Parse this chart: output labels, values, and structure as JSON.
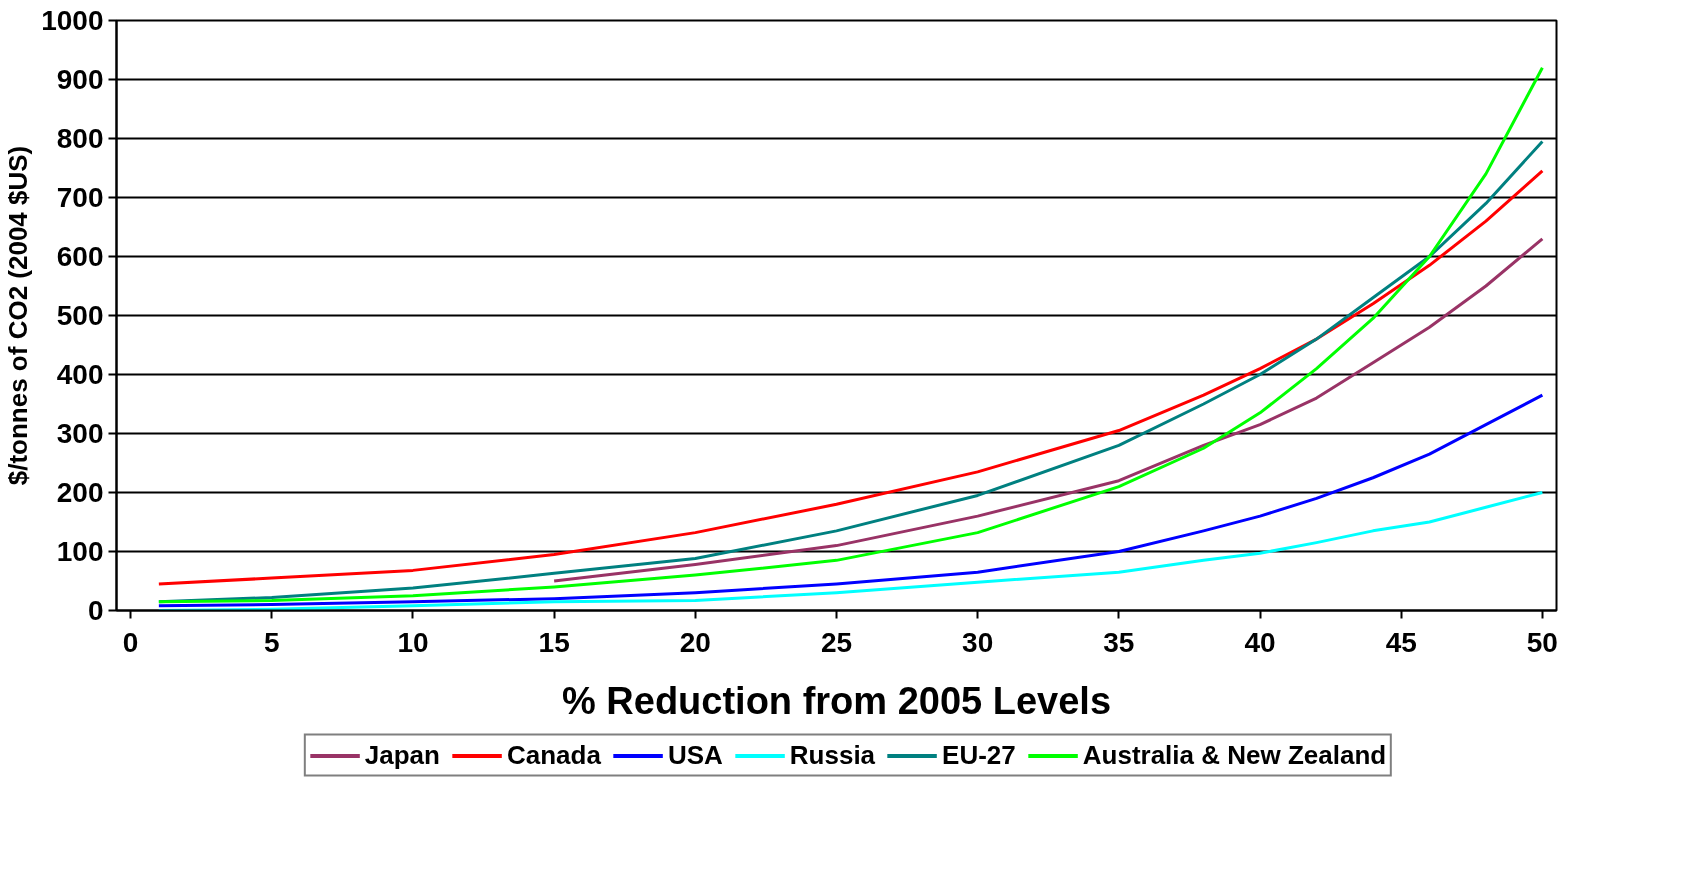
{
  "chart_data": {
    "type": "line",
    "xlabel": "% Reduction from 2005 Levels",
    "ylabel": "$/tonnes of CO2 (2004 $US)",
    "x": [
      1,
      5,
      10,
      15,
      20,
      25,
      30,
      35,
      38,
      40,
      42,
      44,
      46,
      48,
      50
    ],
    "series": [
      {
        "name": "Japan",
        "color": "#993366",
        "x": [
          15,
          20,
          25,
          30,
          35,
          38,
          40,
          42,
          44,
          46,
          48,
          50
        ],
        "values": [
          50,
          78,
          110,
          160,
          220,
          280,
          315,
          360,
          420,
          480,
          550,
          630
        ]
      },
      {
        "name": "Canada",
        "color": "#ff0000",
        "values": [
          45,
          55,
          68,
          95,
          132,
          180,
          235,
          305,
          365,
          410,
          460,
          520,
          585,
          660,
          745
        ]
      },
      {
        "name": "USA",
        "color": "#0000ff",
        "values": [
          8,
          10,
          15,
          20,
          30,
          45,
          65,
          100,
          135,
          160,
          190,
          225,
          265,
          315,
          365
        ]
      },
      {
        "name": "Russia",
        "color": "#00ffff",
        "values": [
          0,
          2,
          8,
          15,
          17,
          30,
          48,
          65,
          85,
          97,
          115,
          135,
          150,
          175,
          200
        ]
      },
      {
        "name": "EU-27",
        "color": "#008080",
        "values": [
          15,
          22,
          38,
          63,
          88,
          135,
          195,
          280,
          350,
          400,
          460,
          530,
          600,
          690,
          795
        ]
      },
      {
        "name": "Australia & New Zealand",
        "color": "#00ff00",
        "values": [
          15,
          17,
          25,
          40,
          60,
          85,
          132,
          210,
          275,
          335,
          410,
          495,
          600,
          740,
          920
        ]
      }
    ],
    "xlim": [
      -0.5,
      50.5
    ],
    "ylim": [
      0,
      1000
    ],
    "xticks": [
      0,
      5,
      10,
      15,
      20,
      25,
      30,
      35,
      40,
      45,
      50
    ],
    "yticks": [
      0,
      100,
      200,
      300,
      400,
      500,
      600,
      700,
      800,
      900,
      1000
    ],
    "grid": "y",
    "legend": "bottom",
    "marker": "none",
    "line_style": "solid"
  }
}
